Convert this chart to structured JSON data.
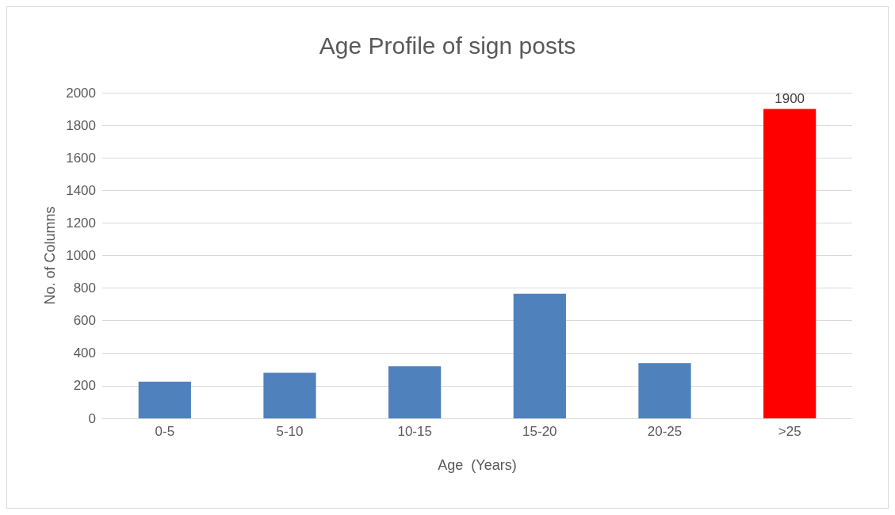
{
  "chart_data": {
    "type": "bar",
    "title": "Age Profile of sign posts",
    "xlabel": "Age  (Years)",
    "ylabel": "No. of Columns",
    "categories": [
      "0-5",
      "5-10",
      "10-15",
      "15-20",
      "20-25",
      ">25"
    ],
    "values": [
      225,
      280,
      320,
      765,
      340,
      1900
    ],
    "colors": [
      "#4f81bd",
      "#4f81bd",
      "#4f81bd",
      "#4f81bd",
      "#4f81bd",
      "#ff0000"
    ],
    "value_labels": [
      null,
      null,
      null,
      null,
      null,
      "1900"
    ],
    "ylim": [
      0,
      2000
    ],
    "yticks": [
      0,
      200,
      400,
      600,
      800,
      1000,
      1200,
      1400,
      1600,
      1800,
      2000
    ],
    "grid": "y"
  }
}
